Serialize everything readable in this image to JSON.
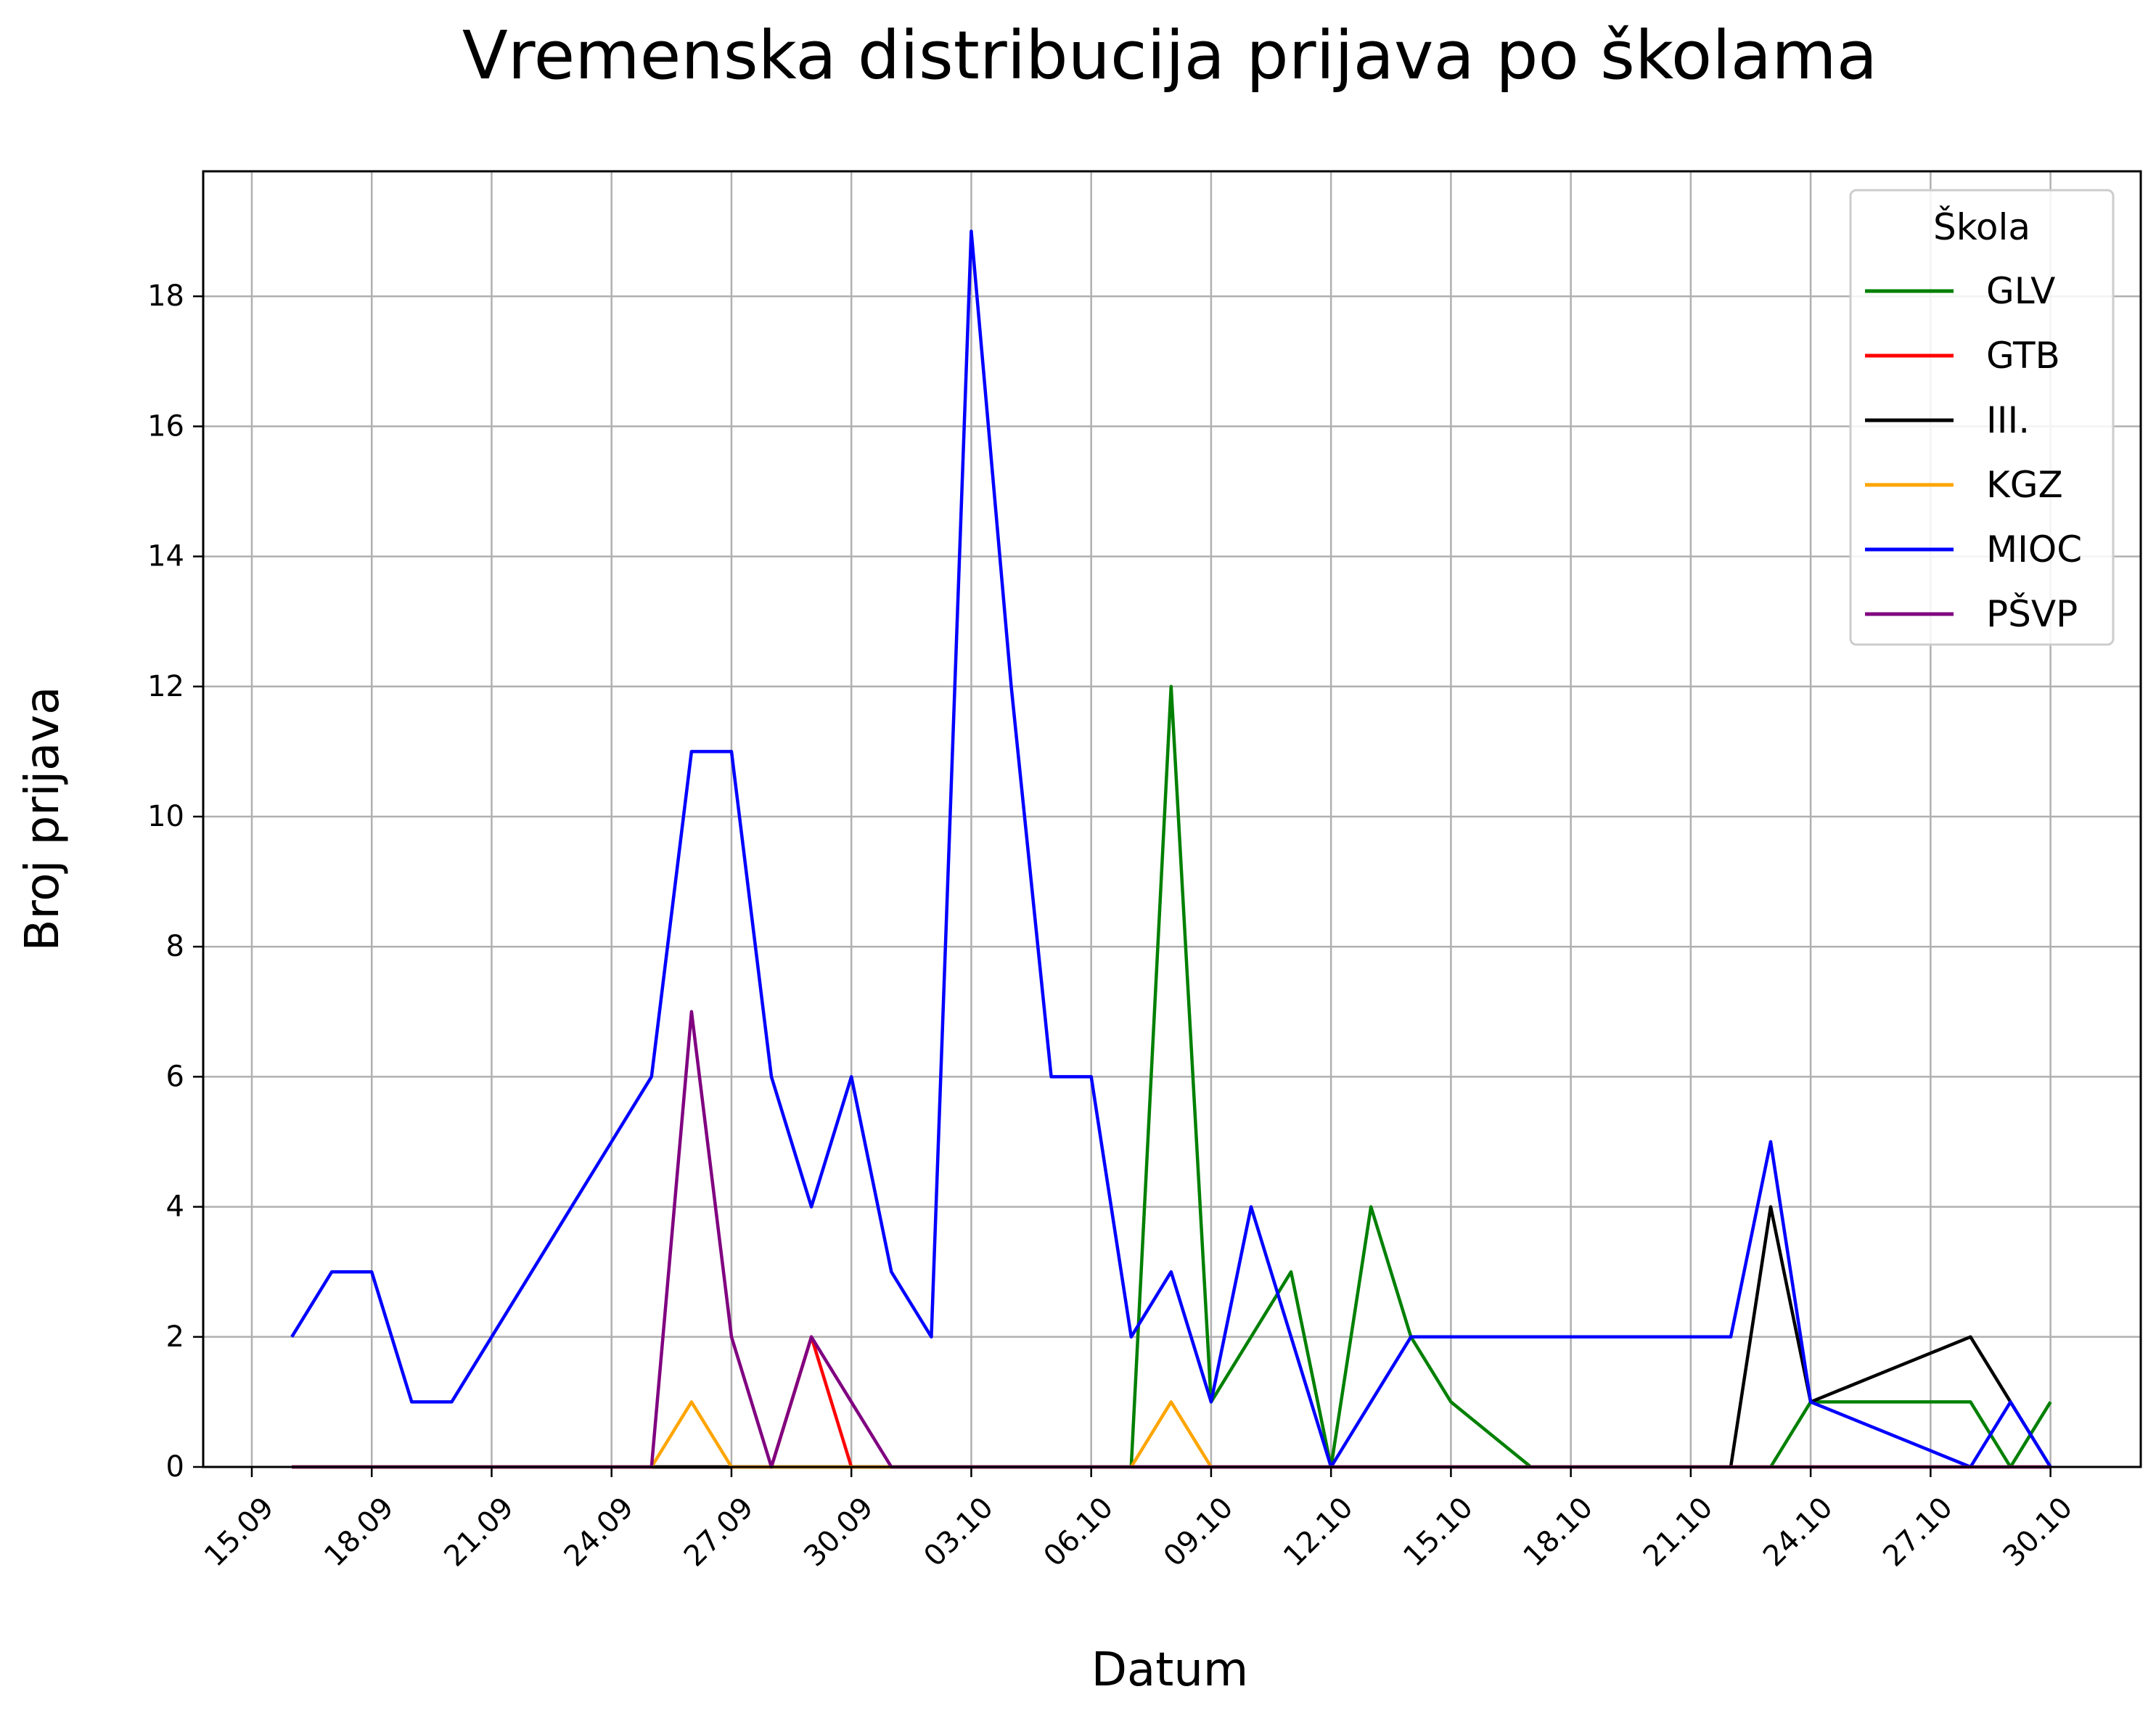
{
  "chart_data": {
    "type": "line",
    "title": "Vremenska distribucija prijava po školama",
    "xlabel": "Datum",
    "ylabel": "Broj prijava",
    "legend": {
      "title": "Škola",
      "placement": "top-right"
    },
    "grid": true,
    "x_ticks": [
      "15.09",
      "18.09",
      "21.09",
      "24.09",
      "27.09",
      "30.09",
      "03.10",
      "06.10",
      "09.10",
      "12.10",
      "15.10",
      "18.10",
      "21.10",
      "24.10",
      "27.10",
      "30.10"
    ],
    "y_ticks": [
      0,
      2,
      4,
      6,
      8,
      10,
      12,
      14,
      16,
      18
    ],
    "ylim": [
      0,
      20
    ],
    "x": [
      "16.09",
      "17.09",
      "18.09",
      "19.09",
      "20.09",
      "21.09",
      "22.09",
      "23.09",
      "24.09",
      "25.09",
      "26.09",
      "27.09",
      "28.09",
      "29.09",
      "30.09",
      "01.10",
      "02.10",
      "03.10",
      "04.10",
      "05.10",
      "06.10",
      "07.10",
      "08.10",
      "09.10",
      "10.10",
      "11.10",
      "12.10",
      "13.10",
      "14.10",
      "15.10",
      "16.10",
      "17.10",
      "18.10",
      "19.10",
      "20.10",
      "21.10",
      "22.10",
      "23.10",
      "24.10",
      "25.10",
      "26.10",
      "27.10",
      "28.10",
      "29.10",
      "30.10"
    ],
    "series": [
      {
        "name": "GLV",
        "color": "#008000",
        "values": [
          0,
          0,
          0,
          0,
          0,
          0,
          0,
          0,
          0,
          0,
          0,
          0,
          0,
          0,
          0,
          0,
          0,
          0,
          0,
          0,
          0,
          0,
          12,
          1,
          2,
          3,
          0,
          4,
          2,
          1,
          0.5,
          0,
          0,
          0,
          0,
          0,
          0,
          0,
          1,
          1,
          1,
          1,
          1,
          0,
          1
        ]
      },
      {
        "name": "GTB",
        "color": "#ff0000",
        "values": [
          0,
          0,
          0,
          0,
          0,
          0,
          0,
          0,
          0,
          0,
          0,
          0,
          0,
          2,
          0,
          0,
          0,
          0,
          0,
          0,
          0,
          0,
          0,
          0,
          0,
          0,
          0,
          0,
          0,
          0,
          0,
          0,
          0,
          0,
          0,
          0,
          0,
          0,
          0,
          0,
          0,
          0,
          0,
          0,
          0
        ]
      },
      {
        "name": "III.",
        "color": "#000000",
        "values": [
          0,
          0,
          0,
          0,
          0,
          0,
          0,
          0,
          0,
          0,
          0,
          0,
          0,
          0,
          0,
          0,
          0,
          0,
          0,
          0,
          0,
          0,
          0,
          0,
          0,
          0,
          0,
          0,
          0,
          0,
          0,
          0,
          0,
          0,
          0,
          0,
          0,
          4,
          1,
          1.25,
          1.5,
          1.75,
          2,
          1,
          0
        ]
      },
      {
        "name": "KGZ",
        "color": "#ffa500",
        "values": [
          0,
          0,
          0,
          0,
          0,
          0,
          0,
          0,
          0,
          0,
          1,
          0,
          0,
          0,
          0,
          0,
          0,
          0,
          0,
          0,
          0,
          0,
          1,
          0,
          0,
          0,
          0,
          0,
          0,
          0,
          0,
          0,
          0,
          0,
          0,
          0,
          0,
          0,
          0,
          0,
          0,
          0,
          0,
          0,
          0
        ]
      },
      {
        "name": "MIOC",
        "color": "#0000ff",
        "values": [
          2,
          3,
          3,
          1,
          1,
          2,
          3,
          4,
          5,
          6,
          11,
          11,
          6,
          4,
          6,
          3,
          2,
          19,
          12,
          6,
          6,
          2,
          3,
          1,
          4,
          2,
          0,
          1,
          2,
          2,
          2,
          2,
          2,
          2,
          2,
          2,
          2,
          5,
          1,
          0.75,
          0.5,
          0.25,
          0,
          1,
          0
        ]
      },
      {
        "name": "PŠVP",
        "color": "#800080",
        "values": [
          0,
          0,
          0,
          0,
          0,
          0,
          0,
          0,
          0,
          0,
          7,
          2,
          0,
          2,
          1,
          0,
          0,
          0,
          0,
          0,
          0,
          0,
          0,
          0,
          0,
          0,
          0,
          0,
          0,
          0,
          0,
          0,
          0,
          0,
          0,
          0,
          0,
          0,
          0,
          0,
          0,
          0,
          0,
          0,
          0
        ]
      }
    ]
  }
}
